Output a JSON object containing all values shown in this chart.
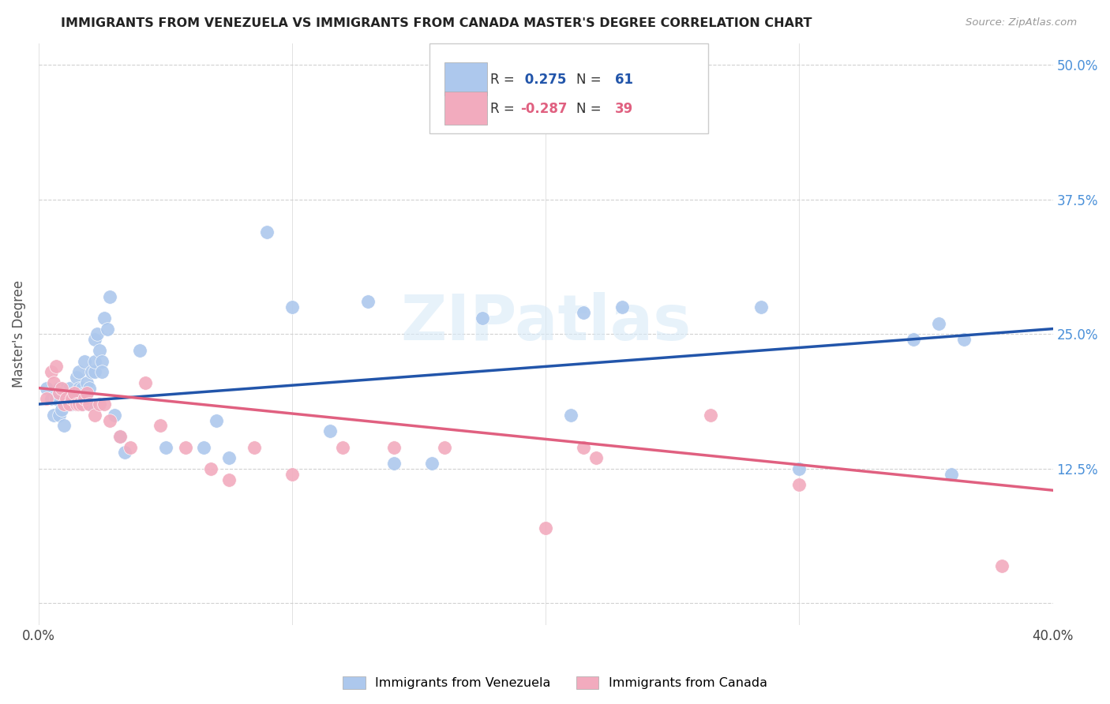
{
  "title": "IMMIGRANTS FROM VENEZUELA VS IMMIGRANTS FROM CANADA MASTER'S DEGREE CORRELATION CHART",
  "source": "Source: ZipAtlas.com",
  "ylabel": "Master's Degree",
  "right_yticks": [
    0.0,
    0.125,
    0.25,
    0.375,
    0.5
  ],
  "right_yticklabels": [
    "",
    "12.5%",
    "25.0%",
    "37.5%",
    "50.0%"
  ],
  "xlim": [
    0.0,
    0.4
  ],
  "ylim": [
    -0.02,
    0.52
  ],
  "ylim_data": [
    0.0,
    0.5
  ],
  "legend_r1": "R = ",
  "legend_v1": " 0.275",
  "legend_n1": "  N = ",
  "legend_n1v": "61",
  "legend_r2": "R = ",
  "legend_v2": "-0.287",
  "legend_n2": "  N = ",
  "legend_n2v": "39",
  "venezuela_color": "#adc8ed",
  "canada_color": "#f2abbe",
  "trend_venezuela_color": "#2255aa",
  "trend_canada_color": "#e06080",
  "watermark": "ZIPatlas",
  "venezuela_scatter_x": [
    0.003,
    0.005,
    0.006,
    0.007,
    0.008,
    0.008,
    0.009,
    0.01,
    0.011,
    0.012,
    0.012,
    0.013,
    0.013,
    0.014,
    0.015,
    0.015,
    0.016,
    0.016,
    0.017,
    0.017,
    0.018,
    0.018,
    0.019,
    0.019,
    0.02,
    0.02,
    0.021,
    0.022,
    0.022,
    0.022,
    0.023,
    0.024,
    0.025,
    0.025,
    0.026,
    0.027,
    0.028,
    0.03,
    0.032,
    0.034,
    0.04,
    0.05,
    0.065,
    0.07,
    0.075,
    0.09,
    0.1,
    0.115,
    0.13,
    0.14,
    0.155,
    0.175,
    0.21,
    0.215,
    0.23,
    0.285,
    0.3,
    0.345,
    0.355,
    0.36,
    0.365
  ],
  "venezuela_scatter_y": [
    0.2,
    0.19,
    0.175,
    0.19,
    0.175,
    0.2,
    0.18,
    0.165,
    0.19,
    0.185,
    0.2,
    0.185,
    0.19,
    0.195,
    0.19,
    0.21,
    0.2,
    0.215,
    0.185,
    0.2,
    0.195,
    0.225,
    0.195,
    0.205,
    0.185,
    0.2,
    0.215,
    0.215,
    0.225,
    0.245,
    0.25,
    0.235,
    0.225,
    0.215,
    0.265,
    0.255,
    0.285,
    0.175,
    0.155,
    0.14,
    0.235,
    0.145,
    0.145,
    0.17,
    0.135,
    0.345,
    0.275,
    0.16,
    0.28,
    0.13,
    0.13,
    0.265,
    0.175,
    0.27,
    0.275,
    0.275,
    0.125,
    0.245,
    0.26,
    0.12,
    0.245
  ],
  "canada_scatter_x": [
    0.003,
    0.005,
    0.006,
    0.007,
    0.008,
    0.009,
    0.01,
    0.011,
    0.012,
    0.013,
    0.014,
    0.015,
    0.016,
    0.017,
    0.018,
    0.019,
    0.02,
    0.022,
    0.024,
    0.026,
    0.028,
    0.032,
    0.036,
    0.042,
    0.048,
    0.058,
    0.068,
    0.075,
    0.085,
    0.1,
    0.12,
    0.14,
    0.16,
    0.2,
    0.215,
    0.22,
    0.265,
    0.3,
    0.38
  ],
  "canada_scatter_y": [
    0.19,
    0.215,
    0.205,
    0.22,
    0.195,
    0.2,
    0.185,
    0.19,
    0.185,
    0.19,
    0.195,
    0.185,
    0.185,
    0.185,
    0.19,
    0.195,
    0.185,
    0.175,
    0.185,
    0.185,
    0.17,
    0.155,
    0.145,
    0.205,
    0.165,
    0.145,
    0.125,
    0.115,
    0.145,
    0.12,
    0.145,
    0.145,
    0.145,
    0.07,
    0.145,
    0.135,
    0.175,
    0.11,
    0.035
  ],
  "venezuela_trend": {
    "x_start": 0.0,
    "x_end": 0.4,
    "y_start": 0.185,
    "y_end": 0.255
  },
  "canada_trend": {
    "x_start": 0.0,
    "x_end": 0.4,
    "y_start": 0.2,
    "y_end": 0.105
  }
}
